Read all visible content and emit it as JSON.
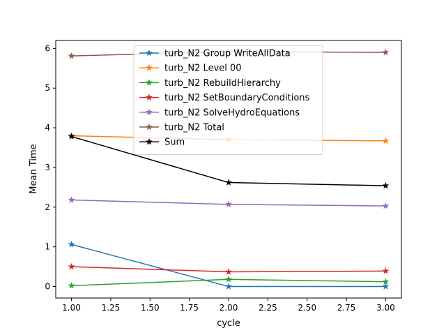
{
  "chart_data": {
    "type": "line",
    "title": "",
    "xlabel": "cycle",
    "ylabel": "Mean Time",
    "xlim": [
      0.9,
      3.1
    ],
    "ylim": [
      -0.29,
      6.2
    ],
    "x_ticks": [
      "1.00",
      "1.25",
      "1.50",
      "1.75",
      "2.00",
      "2.25",
      "2.50",
      "2.75",
      "3.00"
    ],
    "y_ticks": [
      "0",
      "1",
      "2",
      "3",
      "4",
      "5",
      "6"
    ],
    "grid": false,
    "legend_position": "upper-center",
    "marker": "star",
    "x": [
      1.0,
      2.0,
      3.0
    ],
    "series": [
      {
        "name": "turb_N2 Group WriteAllData",
        "color": "#1f77b4",
        "values": [
          1.06,
          0.0,
          0.0
        ]
      },
      {
        "name": "turb_N2 Level 00",
        "color": "#ff7f0e",
        "values": [
          3.8,
          3.7,
          3.67
        ]
      },
      {
        "name": "turb_N2 RebuildHierarchy",
        "color": "#2ca02c",
        "values": [
          0.02,
          0.18,
          0.12
        ]
      },
      {
        "name": "turb_N2 SetBoundaryConditions",
        "color": "#d62728",
        "values": [
          0.5,
          0.37,
          0.39
        ]
      },
      {
        "name": "turb_N2 SolveHydroEquations",
        "color": "#9467bd",
        "values": [
          2.18,
          2.07,
          2.03
        ]
      },
      {
        "name": "turb_N2 Total",
        "color": "#8c564b",
        "values": [
          5.81,
          5.92,
          5.9
        ]
      },
      {
        "name": "Sum",
        "color": "#000000",
        "values": [
          3.78,
          2.62,
          2.54
        ]
      }
    ]
  }
}
